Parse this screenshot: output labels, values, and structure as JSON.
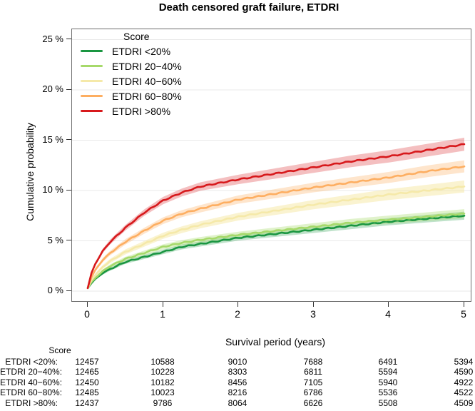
{
  "title": "Death censored graft failure, ETDRI",
  "colors": {
    "background": "#ffffff",
    "plot_border": "#6f6f6f",
    "gridline": "#e9e9e9",
    "tick": "#333333",
    "text": "#000000"
  },
  "chart_data": {
    "type": "line",
    "title": "Death censored graft failure, ETDRI",
    "xlabel": "Survival period (years)",
    "ylabel": "Cumulative probability",
    "xlim": [
      0,
      5
    ],
    "ylim_percent": [
      0,
      26
    ],
    "grid": true,
    "xticks": [
      0,
      1,
      2,
      3,
      4,
      5
    ],
    "ytick_labels": [
      "0 %",
      "5 %",
      "10 %",
      "15 %",
      "20 %",
      "25 %"
    ],
    "ytick_values": [
      0,
      5,
      10,
      15,
      20,
      25
    ],
    "legend_title": "Score",
    "legend_position": "top-left",
    "x": [
      0,
      0.05,
      0.1,
      0.2,
      0.3,
      0.5,
      0.75,
      1,
      1.25,
      1.5,
      2,
      2.5,
      3,
      3.5,
      4,
      4.5,
      5
    ],
    "series": [
      {
        "name": "ETDRI <20%",
        "color": "#1a9641",
        "band_opacity": 0.28,
        "values": [
          0.3,
          0.8,
          1.2,
          1.8,
          2.2,
          2.9,
          3.4,
          3.9,
          4.4,
          4.7,
          5.3,
          5.7,
          6.1,
          6.5,
          6.9,
          7.2,
          7.5
        ],
        "ci": [
          0.05,
          0.1,
          0.12,
          0.15,
          0.17,
          0.19,
          0.21,
          0.23,
          0.25,
          0.26,
          0.28,
          0.3,
          0.32,
          0.34,
          0.36,
          0.38,
          0.4
        ]
      },
      {
        "name": "ETDRI 20−40%",
        "color": "#a6d96a",
        "band_opacity": 0.35,
        "values": [
          0.3,
          0.9,
          1.3,
          2.0,
          2.5,
          3.2,
          3.8,
          4.4,
          4.8,
          5.1,
          5.6,
          6.0,
          6.4,
          6.8,
          7.1,
          7.4,
          7.7
        ],
        "ci": [
          0.05,
          0.11,
          0.13,
          0.16,
          0.18,
          0.21,
          0.23,
          0.25,
          0.27,
          0.28,
          0.31,
          0.33,
          0.35,
          0.38,
          0.41,
          0.43,
          0.45
        ]
      },
      {
        "name": "ETDRI 40−60%",
        "color": "#f5e9a9",
        "band_opacity": 0.55,
        "values": [
          0.3,
          1.1,
          1.6,
          2.4,
          3.0,
          3.9,
          4.7,
          5.5,
          6.1,
          6.6,
          7.4,
          8.0,
          8.6,
          9.1,
          9.6,
          10.0,
          10.4
        ],
        "ci": [
          0.06,
          0.12,
          0.15,
          0.19,
          0.22,
          0.25,
          0.28,
          0.31,
          0.33,
          0.35,
          0.38,
          0.42,
          0.46,
          0.5,
          0.54,
          0.57,
          0.6
        ]
      },
      {
        "name": "ETDRI 60−80%",
        "color": "#fdae61",
        "band_opacity": 0.32,
        "values": [
          0.3,
          1.4,
          2.1,
          3.1,
          3.8,
          4.9,
          6.0,
          7.0,
          7.7,
          8.2,
          9.1,
          9.7,
          10.3,
          10.8,
          11.3,
          11.9,
          12.4
        ],
        "ci": [
          0.06,
          0.13,
          0.16,
          0.2,
          0.23,
          0.27,
          0.3,
          0.33,
          0.35,
          0.37,
          0.41,
          0.45,
          0.48,
          0.52,
          0.55,
          0.58,
          0.6
        ]
      },
      {
        "name": "ETDRI >80%",
        "color": "#d7191c",
        "band_opacity": 0.28,
        "values": [
          0.3,
          1.8,
          2.7,
          4.0,
          4.9,
          6.3,
          7.8,
          9.0,
          9.8,
          10.4,
          11.1,
          11.7,
          12.3,
          12.9,
          13.4,
          14.0,
          14.6
        ],
        "ci": [
          0.06,
          0.14,
          0.17,
          0.21,
          0.24,
          0.28,
          0.32,
          0.36,
          0.39,
          0.42,
          0.47,
          0.51,
          0.55,
          0.58,
          0.61,
          0.63,
          0.65
        ]
      }
    ]
  },
  "risk_table": {
    "header": "Score",
    "time_points": [
      0,
      1,
      2,
      3,
      4,
      5
    ],
    "rows": [
      {
        "label": "ETDRI <20%:",
        "counts": [
          12457,
          10588,
          9010,
          7688,
          6491,
          5394
        ]
      },
      {
        "label": "ETDRI 20−40%:",
        "counts": [
          12465,
          10228,
          8303,
          6811,
          5594,
          4590
        ]
      },
      {
        "label": "ETDRI 40−60%:",
        "counts": [
          12450,
          10182,
          8456,
          7105,
          5940,
          4922
        ]
      },
      {
        "label": "ETDRI 60−80%:",
        "counts": [
          12485,
          10023,
          8216,
          6786,
          5536,
          4522
        ]
      },
      {
        "label": "ETDRI >80%:",
        "counts": [
          12437,
          9786,
          8064,
          6626,
          5508,
          4509
        ]
      }
    ]
  }
}
